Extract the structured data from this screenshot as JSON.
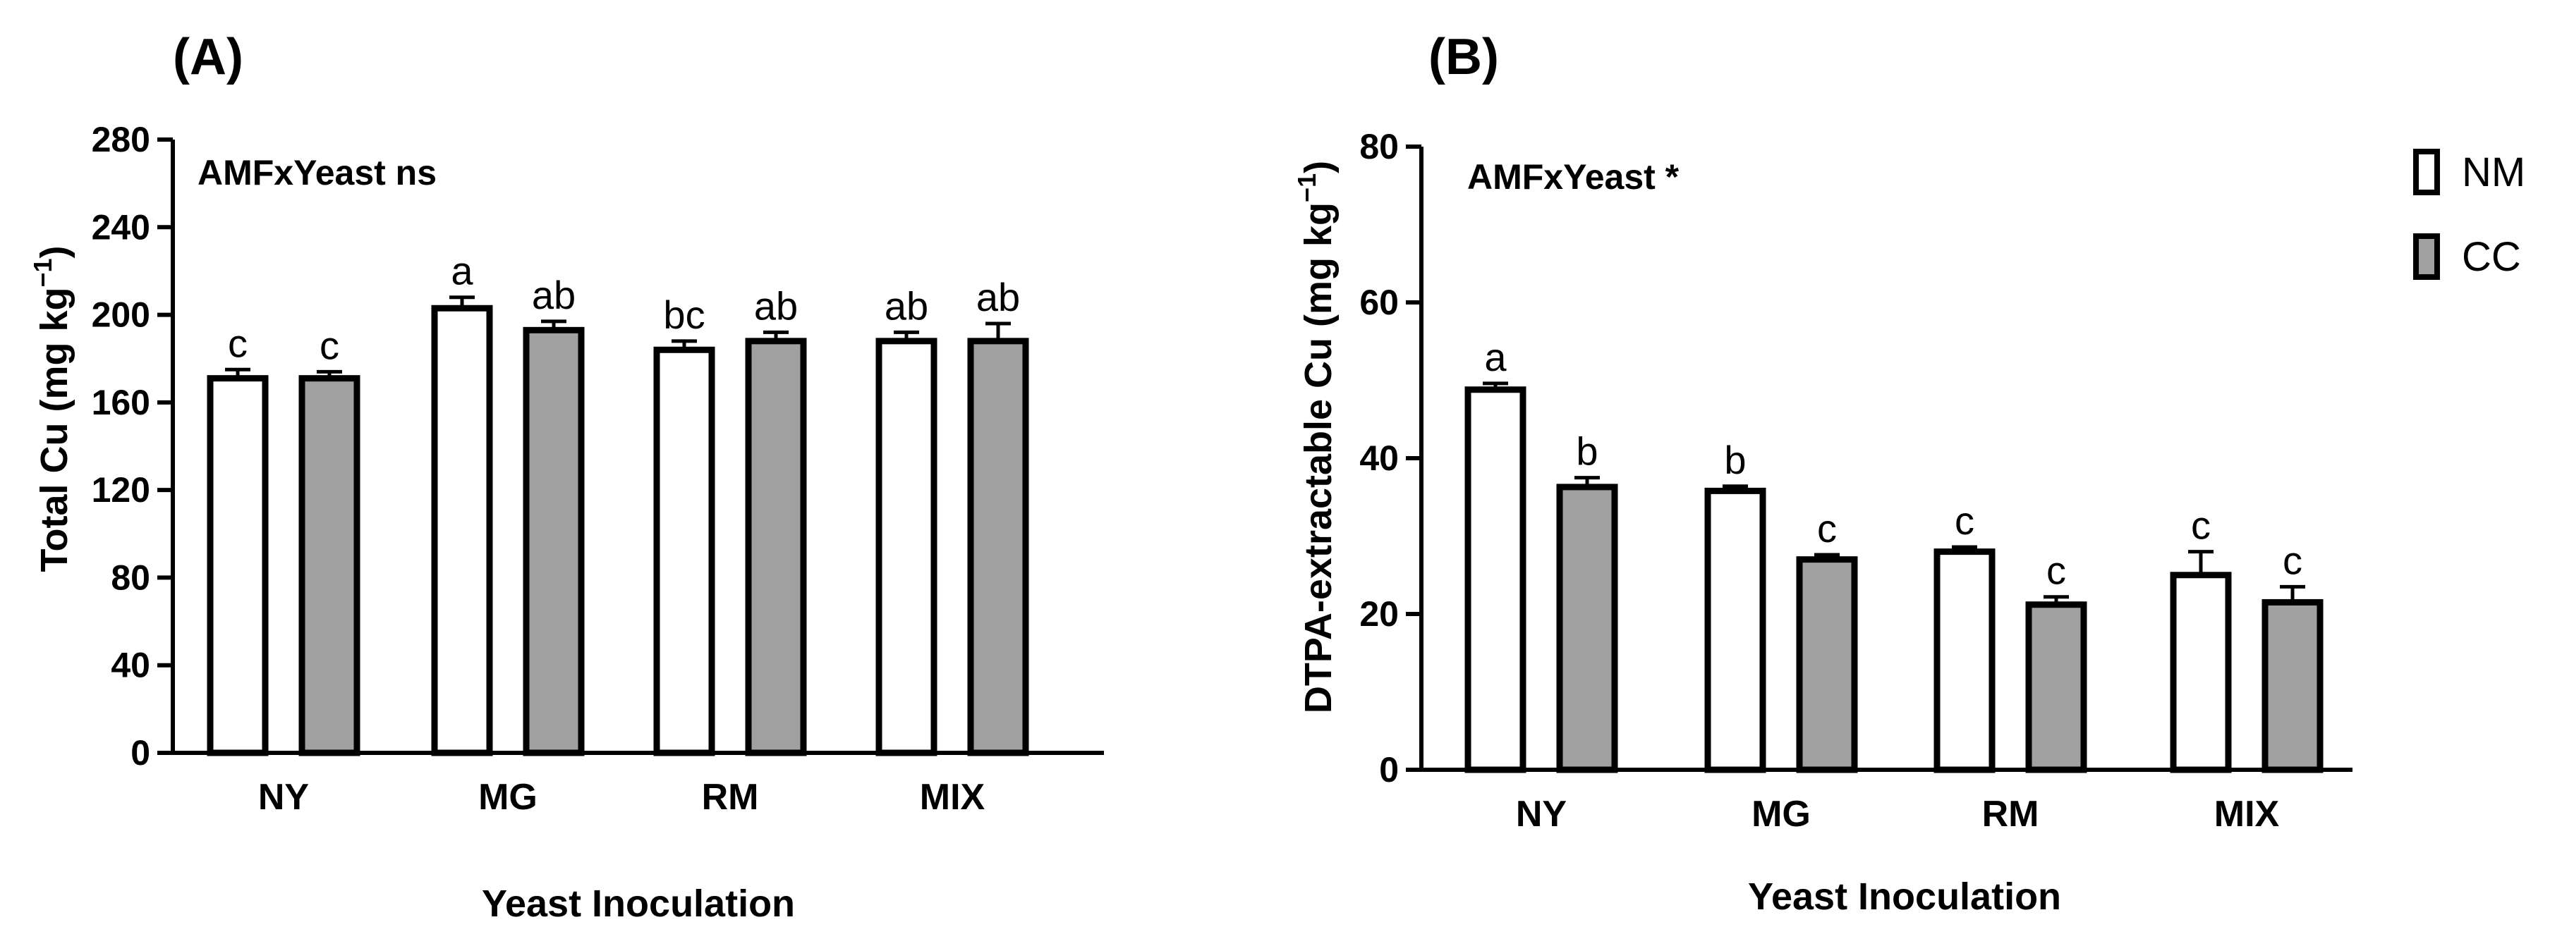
{
  "legend": [
    {
      "name": "NM",
      "color": "#ffffff"
    },
    {
      "name": "CC",
      "color": "#a0a0a0"
    }
  ],
  "chart_data": [
    {
      "type": "bar",
      "panel_label": "(A)",
      "annotation": "AMFxYeast ns",
      "xlabel": "Yeast Inoculation",
      "ylabel": {
        "main": "Total Cu (mg kg",
        "sup": "−1",
        "close": ")"
      },
      "ylim": [
        0,
        280
      ],
      "yticks": [
        0,
        40,
        80,
        120,
        160,
        200,
        240,
        280
      ],
      "categories": [
        "NY",
        "MG",
        "RM",
        "MIX"
      ],
      "series": [
        {
          "name": "NM",
          "values": [
            171,
            203,
            184,
            188
          ],
          "errors": [
            4,
            5,
            4,
            4
          ],
          "letters": [
            "c",
            "a",
            "bc",
            "ab"
          ]
        },
        {
          "name": "CC",
          "values": [
            171,
            193,
            188,
            188
          ],
          "errors": [
            3,
            4,
            4,
            8
          ],
          "letters": [
            "c",
            "ab",
            "ab",
            "ab"
          ]
        }
      ]
    },
    {
      "type": "bar",
      "panel_label": "(B)",
      "annotation": "AMFxYeast *",
      "xlabel": "Yeast Inoculation",
      "ylabel": {
        "main": "DTPA-extractable Cu (mg kg",
        "sup": "−1",
        "close": ")"
      },
      "ylim": [
        0,
        80
      ],
      "yticks": [
        0,
        20,
        40,
        60,
        80
      ],
      "categories": [
        "NY",
        "MG",
        "RM",
        "MIX"
      ],
      "series": [
        {
          "name": "NM",
          "values": [
            48.8,
            35.8,
            28,
            25
          ],
          "errors": [
            0.8,
            0.6,
            0.6,
            3
          ],
          "letters": [
            "a",
            "b",
            "c",
            "c"
          ]
        },
        {
          "name": "CC",
          "values": [
            36.3,
            27,
            21.2,
            21.5
          ],
          "errors": [
            1.2,
            0.6,
            1,
            2
          ],
          "letters": [
            "b",
            "c",
            "c",
            "c"
          ]
        }
      ]
    }
  ]
}
